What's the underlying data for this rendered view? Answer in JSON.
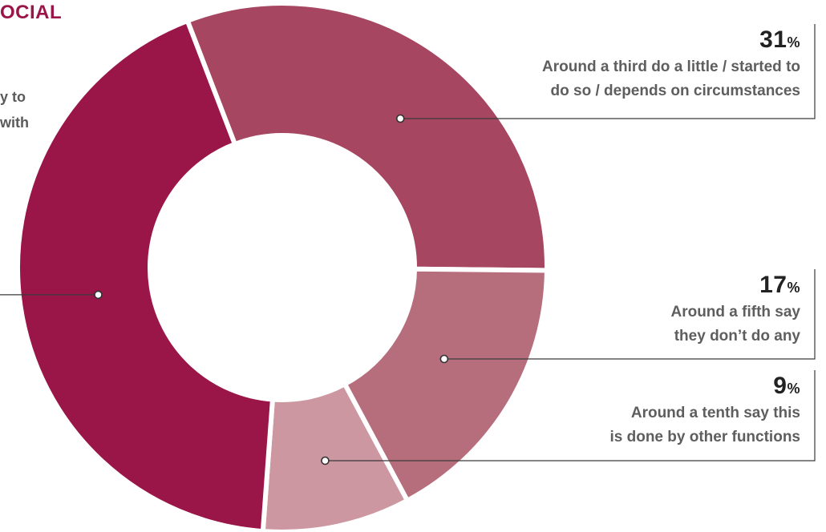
{
  "title_fragment": "OCIAL",
  "left_text": [
    "y to",
    "with"
  ],
  "colors": {
    "background": "#ffffff",
    "title": "#9a1548",
    "slice_large": "#9a1548",
    "slice_31": "#a64660",
    "slice_17": "#b66e7d",
    "slice_9": "#cc97a0",
    "leader": "#3a3a3a"
  },
  "chart_data": {
    "type": "pie",
    "variant": "donut",
    "slices": [
      {
        "value": 31,
        "label_value": "31",
        "unit": "%",
        "description": [
          "Around a third do a little / started to",
          "do so / depends on circumstances"
        ]
      },
      {
        "value": 17,
        "label_value": "17",
        "unit": "%",
        "description": [
          "Around a fifth say",
          "they don’t do any"
        ]
      },
      {
        "value": 9,
        "label_value": "9",
        "unit": "%",
        "description": [
          "Around a tenth say this",
          "is done by other functions"
        ]
      },
      {
        "value": 43
      }
    ]
  }
}
